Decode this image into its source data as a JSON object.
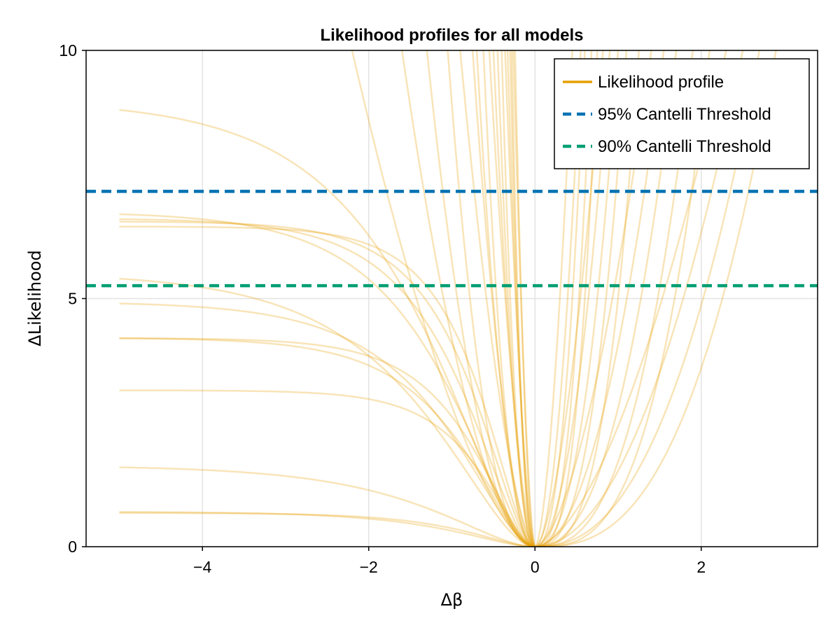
{
  "chart_data": {
    "type": "line",
    "title": "Likelihood profiles for all models",
    "xlabel": "Δβ",
    "ylabel": "ΔLikelihood",
    "xlim": [
      -5.4,
      3.4
    ],
    "ylim": [
      0,
      10
    ],
    "xticks": [
      -4,
      -2,
      0,
      2
    ],
    "xtick_labels": [
      "−4",
      "−2",
      "0",
      "2"
    ],
    "yticks": [
      0,
      5,
      10
    ],
    "ytick_labels": [
      "0",
      "5",
      "10"
    ],
    "grid": true,
    "legend_position": "top-right",
    "colors": {
      "profile": "#E69F00",
      "cantelli95": "#0072B2",
      "cantelli90": "#009E73"
    },
    "series": [
      {
        "name": "Likelihood profile",
        "style": "solid"
      },
      {
        "name": "95% Cantelli Threshold",
        "style": "dashed",
        "y": 7.16
      },
      {
        "name": "90% Cantelli Threshold",
        "style": "dashed",
        "y": 5.26
      }
    ],
    "profile_shapes": {
      "plateau_left": [
        8.8,
        6.7,
        6.6,
        6.55,
        6.45,
        5.4,
        4.9,
        4.2,
        4.2,
        3.15,
        1.6,
        0.7,
        0.68
      ],
      "steep_left_x_at_10": [
        -2.2,
        -1.6,
        -1.3,
        -1.05,
        -0.9,
        -0.75,
        -0.7,
        -0.62,
        -0.55,
        -0.5,
        -0.45,
        -0.4,
        -0.36,
        -0.33,
        -0.3,
        -0.28,
        -0.26,
        -0.24
      ],
      "steep_right_x_at_10": [
        0.45,
        0.55,
        0.6,
        0.68,
        0.75,
        0.82,
        0.9,
        1.0,
        1.1,
        1.25,
        1.4,
        1.55,
        1.7,
        1.9,
        2.1,
        2.3,
        2.5,
        2.7,
        2.9
      ]
    }
  }
}
